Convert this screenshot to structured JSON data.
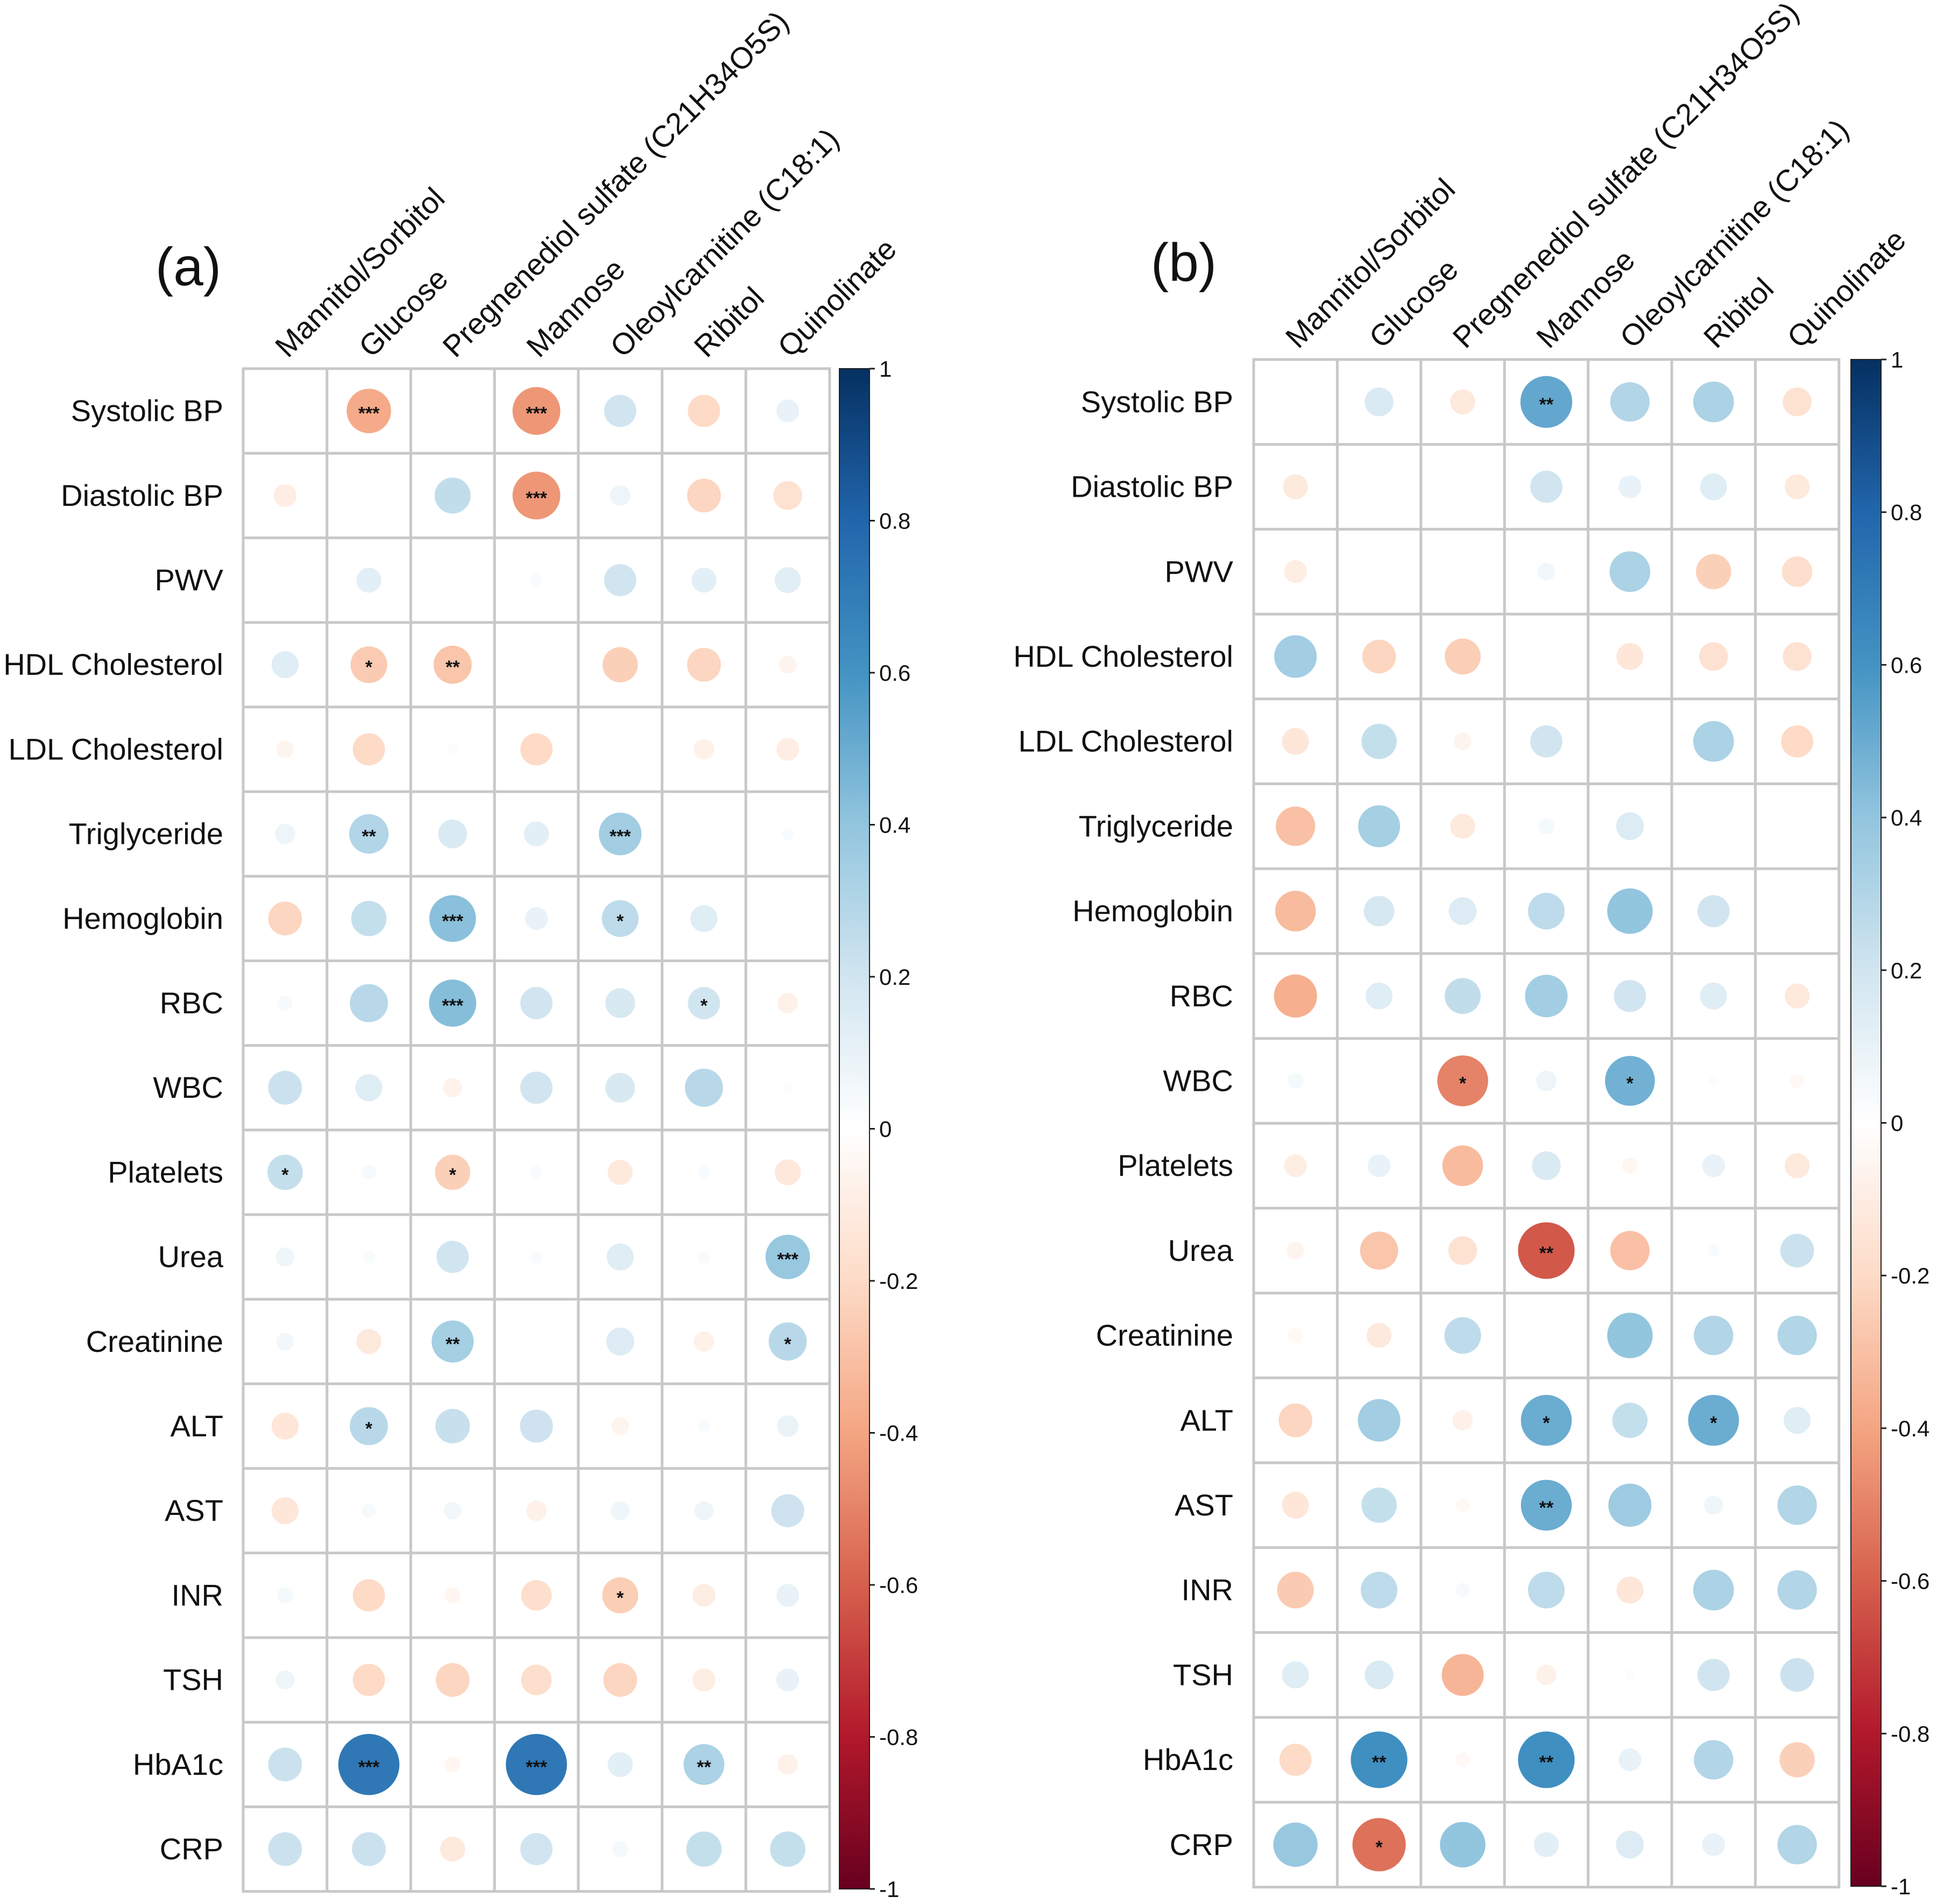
{
  "chart_data": [
    {
      "type": "heatmap",
      "title": "(a)",
      "columns": [
        "Mannitol/Sorbitol",
        "Glucose",
        "Pregnenediol sulfate (C21H34O5S)",
        "Mannose",
        "Oleoylcarnitine (C18:1)",
        "Ribitol",
        "Quinolinate"
      ],
      "rows": [
        "Systolic BP",
        "Diastolic BP",
        "PWV",
        "HDL Cholesterol",
        "LDL Cholesterol",
        "Triglyceride",
        "Hemoglobin",
        "RBC",
        "WBC",
        "Platelets",
        "Urea",
        "Creatinine",
        "ALT",
        "AST",
        "INR",
        "TSH",
        "HbA1c",
        "CRP"
      ],
      "values": [
        [
          0,
          -0.38,
          0,
          -0.44,
          0.2,
          -0.2,
          0.1
        ],
        [
          -0.1,
          0,
          0.25,
          -0.44,
          0.08,
          -0.22,
          -0.16
        ],
        [
          0,
          0.12,
          0,
          0.03,
          0.2,
          0.12,
          0.13
        ],
        [
          0.14,
          -0.26,
          -0.28,
          0,
          -0.24,
          -0.22,
          -0.06
        ],
        [
          -0.06,
          -0.2,
          0.02,
          -0.2,
          0,
          -0.08,
          -0.1
        ],
        [
          0.08,
          0.3,
          0.16,
          0.12,
          0.35,
          0,
          0.03
        ],
        [
          -0.22,
          0.24,
          0.42,
          0.1,
          0.26,
          0.14,
          0
        ],
        [
          0.04,
          0.28,
          0.43,
          0.2,
          0.17,
          0.2,
          -0.08
        ],
        [
          0.22,
          0.14,
          -0.07,
          0.2,
          0.17,
          0.28,
          0.02
        ],
        [
          0.24,
          0.04,
          -0.24,
          0.03,
          -0.12,
          0.03,
          -0.13
        ],
        [
          0.07,
          0.03,
          0.2,
          0.03,
          0.14,
          0.03,
          0.38
        ],
        [
          0.06,
          -0.12,
          0.34,
          0,
          0.15,
          -0.08,
          0.28
        ],
        [
          -0.14,
          0.28,
          0.23,
          0.21,
          -0.06,
          0.03,
          0.09
        ],
        [
          -0.14,
          0.04,
          0.06,
          -0.08,
          0.07,
          0.07,
          0.21
        ],
        [
          0.05,
          -0.2,
          -0.05,
          -0.18,
          -0.25,
          -0.1,
          0.1
        ],
        [
          0.07,
          -0.2,
          -0.22,
          -0.18,
          -0.22,
          -0.1,
          0.1
        ],
        [
          0.22,
          0.72,
          -0.05,
          0.72,
          0.12,
          0.32,
          -0.08
        ],
        [
          0.22,
          0.22,
          -0.12,
          0.2,
          0.05,
          0.24,
          0.24
        ]
      ],
      "significance": [
        [
          "",
          "***",
          "",
          "***",
          "",
          "",
          ""
        ],
        [
          "",
          "",
          "",
          "***",
          "",
          "",
          ""
        ],
        [
          "",
          "",
          "",
          "",
          "",
          "",
          ""
        ],
        [
          "",
          "*",
          "**",
          "",
          "",
          "",
          ""
        ],
        [
          "",
          "",
          "",
          "",
          "",
          "",
          ""
        ],
        [
          "",
          "**",
          "",
          "",
          "***",
          "",
          ""
        ],
        [
          "",
          "",
          "***",
          "",
          "*",
          "",
          ""
        ],
        [
          "",
          "",
          "***",
          "",
          "",
          "*",
          ""
        ],
        [
          "",
          "",
          "",
          "",
          "",
          "",
          ""
        ],
        [
          "*",
          "",
          "*",
          "",
          "",
          "",
          ""
        ],
        [
          "",
          "",
          "",
          "",
          "",
          "",
          "***"
        ],
        [
          "",
          "",
          "**",
          "",
          "",
          "",
          "*"
        ],
        [
          "",
          "*",
          "",
          "",
          "",
          "",
          ""
        ],
        [
          "",
          "",
          "",
          "",
          "",
          "",
          ""
        ],
        [
          "",
          "",
          "",
          "",
          "*",
          "",
          ""
        ],
        [
          "",
          "",
          "",
          "",
          "",
          "",
          ""
        ],
        [
          "",
          "***",
          "",
          "***",
          "",
          "**",
          ""
        ],
        [
          "",
          "",
          "",
          "",
          "",
          "",
          ""
        ]
      ],
      "colorbar": {
        "range": [
          -1,
          1
        ],
        "ticks": [
          "1",
          "0.8",
          "0.6",
          "0.4",
          "0.2",
          "0",
          "-0.2",
          "-0.4",
          "-0.6",
          "-0.8",
          "-1"
        ]
      }
    },
    {
      "type": "heatmap",
      "title": "(b)",
      "columns": [
        "Mannitol/Sorbitol",
        "Glucose",
        "Pregnenediol sulfate (C21H34O5S)",
        "Mannose",
        "Oleoylcarnitine (C18:1)",
        "Ribitol",
        "Quinolinate"
      ],
      "rows": [
        "Systolic BP",
        "Diastolic BP",
        "PWV",
        "HDL Cholesterol",
        "LDL Cholesterol",
        "Triglyceride",
        "Hemoglobin",
        "RBC",
        "WBC",
        "Platelets",
        "Urea",
        "Creatinine",
        "ALT",
        "AST",
        "INR",
        "TSH",
        "HbA1c",
        "CRP"
      ],
      "values": [
        [
          0,
          0.16,
          -0.12,
          0.52,
          0.3,
          0.32,
          -0.16
        ],
        [
          -0.12,
          0,
          0,
          0.2,
          0.1,
          0.14,
          -0.12
        ],
        [
          -0.1,
          0,
          0,
          0.06,
          0.32,
          -0.24,
          -0.18
        ],
        [
          0.35,
          -0.22,
          -0.25,
          0,
          -0.14,
          -0.16,
          -0.16
        ],
        [
          -0.14,
          0.24,
          -0.06,
          0.2,
          0,
          0.32,
          -0.2
        ],
        [
          -0.3,
          0.34,
          -0.12,
          0.05,
          0.15,
          0,
          0
        ],
        [
          -0.32,
          0.18,
          0.15,
          0.26,
          0.4,
          0.2,
          0
        ],
        [
          -0.36,
          0.14,
          0.25,
          0.35,
          0.2,
          0.14,
          -0.12
        ],
        [
          0.05,
          0,
          -0.5,
          0.08,
          0.48,
          0.02,
          -0.04
        ],
        [
          -0.1,
          0.1,
          -0.32,
          0.16,
          -0.05,
          0.1,
          -0.12
        ],
        [
          -0.06,
          -0.28,
          -0.16,
          -0.62,
          -0.3,
          0.03,
          0.22
        ],
        [
          -0.04,
          -0.12,
          0.26,
          0,
          0.4,
          0.3,
          0.3
        ],
        [
          -0.22,
          0.35,
          -0.08,
          0.5,
          0.24,
          0.5,
          0.14
        ],
        [
          -0.14,
          0.24,
          -0.04,
          0.5,
          0.36,
          0.07,
          0.3
        ],
        [
          -0.26,
          0.26,
          0.04,
          0.26,
          -0.14,
          0.32,
          0.3
        ],
        [
          0.14,
          0.16,
          -0.34,
          -0.08,
          0.02,
          0.2,
          0.22
        ],
        [
          -0.2,
          0.62,
          -0.04,
          0.62,
          0.1,
          0.3,
          -0.24
        ],
        [
          0.38,
          -0.55,
          0.4,
          0.12,
          0.15,
          0.1,
          0.3
        ]
      ],
      "significance": [
        [
          "",
          "",
          "",
          "**",
          "",
          "",
          ""
        ],
        [
          "",
          "",
          "",
          "",
          "",
          "",
          ""
        ],
        [
          "",
          "",
          "",
          "",
          "",
          "",
          ""
        ],
        [
          "",
          "",
          "",
          "",
          "",
          "",
          ""
        ],
        [
          "",
          "",
          "",
          "",
          "",
          "",
          ""
        ],
        [
          "",
          "",
          "",
          "",
          "",
          "",
          ""
        ],
        [
          "",
          "",
          "",
          "",
          "",
          "",
          ""
        ],
        [
          "",
          "",
          "",
          "",
          "",
          "",
          ""
        ],
        [
          "",
          "",
          "*",
          "",
          "*",
          "",
          ""
        ],
        [
          "",
          "",
          "",
          "",
          "",
          "",
          ""
        ],
        [
          "",
          "",
          "",
          "**",
          "",
          "",
          ""
        ],
        [
          "",
          "",
          "",
          "",
          "",
          "",
          ""
        ],
        [
          "",
          "",
          "",
          "*",
          "",
          "*",
          ""
        ],
        [
          "",
          "",
          "",
          "**",
          "",
          "",
          ""
        ],
        [
          "",
          "",
          "",
          "",
          "",
          "",
          ""
        ],
        [
          "",
          "",
          "",
          "",
          "",
          "",
          ""
        ],
        [
          "",
          "**",
          "",
          "**",
          "",
          "",
          ""
        ],
        [
          "",
          "*",
          "",
          "",
          "",
          "",
          ""
        ]
      ],
      "colorbar": {
        "range": [
          -1,
          1
        ],
        "ticks": [
          "1",
          "0.8",
          "0.6",
          "0.4",
          "0.2",
          "0",
          "-0.2",
          "-0.4",
          "-0.6",
          "-0.8",
          "-1"
        ]
      }
    }
  ]
}
